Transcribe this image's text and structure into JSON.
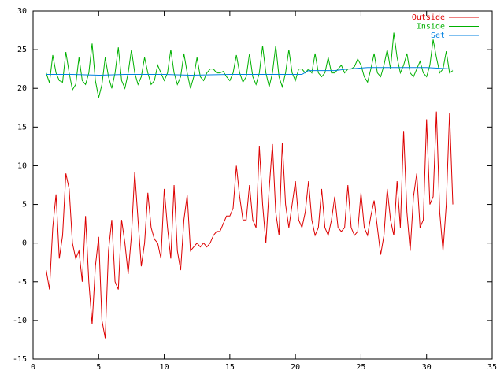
{
  "chart_data": {
    "type": "line",
    "xlim": [
      0,
      35
    ],
    "xticks": [
      0,
      5,
      10,
      15,
      20,
      25,
      30,
      35
    ],
    "ylim": [
      -15,
      30
    ],
    "yticks": [
      -15,
      -10,
      -5,
      0,
      5,
      10,
      15,
      20,
      25,
      30
    ],
    "legend": "top-right",
    "x": [
      1,
      1.25,
      1.5,
      1.75,
      2,
      2.25,
      2.5,
      2.75,
      3,
      3.25,
      3.5,
      3.75,
      4,
      4.25,
      4.5,
      4.75,
      5,
      5.25,
      5.5,
      5.75,
      6,
      6.25,
      6.5,
      6.75,
      7,
      7.25,
      7.5,
      7.75,
      8,
      8.25,
      8.5,
      8.75,
      9,
      9.25,
      9.5,
      9.75,
      10,
      10.25,
      10.5,
      10.75,
      11,
      11.25,
      11.5,
      11.75,
      12,
      12.25,
      12.5,
      12.75,
      13,
      13.25,
      13.5,
      13.75,
      14,
      14.25,
      14.5,
      14.75,
      15,
      15.25,
      15.5,
      15.75,
      16,
      16.25,
      16.5,
      16.75,
      17,
      17.25,
      17.5,
      17.75,
      18,
      18.25,
      18.5,
      18.75,
      19,
      19.25,
      19.5,
      19.75,
      20,
      20.25,
      20.5,
      20.75,
      21,
      21.25,
      21.5,
      21.75,
      22,
      22.25,
      22.5,
      22.75,
      23,
      23.25,
      23.5,
      23.75,
      24,
      24.25,
      24.5,
      24.75,
      25,
      25.25,
      25.5,
      25.75,
      26,
      26.25,
      26.5,
      26.75,
      27,
      27.25,
      27.5,
      27.75,
      28,
      28.25,
      28.5,
      28.75,
      29,
      29.25,
      29.5,
      29.75,
      30,
      30.25,
      30.5,
      30.75,
      31,
      31.25,
      31.5,
      31.75,
      32
    ],
    "series": [
      {
        "name": "Outside",
        "color": "#dd0000",
        "values": [
          -3.5,
          -6,
          2,
          6.3,
          -2,
          1,
          9,
          7,
          0,
          -2,
          -1,
          -5,
          3.5,
          -5,
          -10.5,
          -3,
          0.8,
          -10,
          -12.3,
          -1,
          3,
          -5,
          -6,
          3,
          0,
          -4,
          1,
          9.2,
          3,
          -3,
          0,
          6.5,
          2,
          0.5,
          0,
          -2,
          7,
          2,
          -2,
          7.5,
          -1,
          -3.5,
          3,
          6.2,
          -1,
          -0.5,
          0,
          -0.5,
          0,
          -0.5,
          0,
          1,
          1.5,
          1.5,
          2.5,
          3.5,
          3.5,
          4.5,
          10,
          6,
          3,
          3,
          7.5,
          3,
          2,
          12.5,
          5,
          0,
          7,
          12.8,
          4,
          1,
          13,
          5,
          2,
          5,
          8,
          3,
          2,
          4,
          8,
          3,
          1,
          2,
          7,
          2,
          1,
          3,
          6,
          2,
          1.5,
          2,
          7.5,
          2,
          1,
          1.5,
          6.5,
          2,
          1,
          3.5,
          5.5,
          2,
          -1.5,
          1,
          7,
          3,
          1,
          8,
          2,
          14.5,
          4,
          -1,
          6,
          9,
          2,
          3,
          16,
          5,
          6,
          17,
          4,
          -1,
          5,
          16.8,
          5
        ]
      },
      {
        "name": "Inside",
        "color": "#00b000",
        "values": [
          22,
          20.7,
          24.3,
          22,
          21,
          20.8,
          24.7,
          22,
          19.8,
          20.5,
          24,
          21,
          20.5,
          22,
          25.8,
          21,
          18.8,
          20.5,
          24,
          21.5,
          20,
          22,
          25.3,
          21,
          20,
          22,
          25,
          22,
          20.5,
          21.5,
          24,
          22,
          20.5,
          21,
          23,
          22,
          21,
          22,
          25,
          22,
          20.5,
          21.5,
          24.5,
          22,
          20,
          21.5,
          24,
          21.5,
          21,
          22,
          22.5,
          22.5,
          22,
          22,
          22.2,
          21.5,
          21,
          22,
          24.3,
          22,
          20.8,
          21.5,
          24.5,
          21.5,
          20.5,
          22,
          25.5,
          22,
          20.2,
          22,
          25.5,
          21.5,
          20.2,
          22,
          25,
          22,
          21,
          22.5,
          22.5,
          22,
          22.5,
          22,
          24.5,
          22,
          21.5,
          22,
          24,
          22,
          22,
          22.5,
          23,
          22,
          22.5,
          22.5,
          22.8,
          23.8,
          23,
          21.5,
          20.8,
          22.5,
          24.5,
          22,
          21.5,
          23,
          25,
          22.5,
          27.2,
          24,
          22,
          23,
          24.5,
          22,
          21.5,
          22.5,
          23.5,
          22,
          21.5,
          23,
          26.3,
          24,
          22,
          22.5,
          24.8,
          22,
          22.3
        ]
      },
      {
        "name": "Set",
        "color": "#0080e0",
        "x": [
          1,
          3,
          5,
          7,
          10,
          12,
          15,
          17,
          19,
          20.5,
          21,
          23,
          24,
          25.5,
          26,
          28,
          30,
          32
        ],
        "values": [
          21.8,
          21.8,
          21.7,
          21.8,
          21.8,
          21.7,
          21.8,
          21.8,
          21.8,
          21.8,
          22.3,
          22.3,
          22.5,
          22.7,
          22.7,
          22.7,
          22.7,
          22.5
        ]
      }
    ]
  }
}
